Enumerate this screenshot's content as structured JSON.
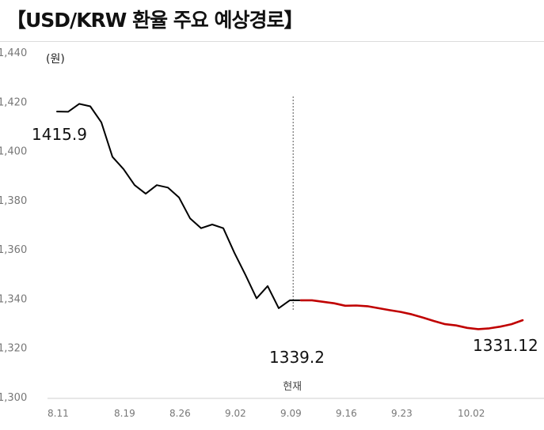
{
  "title": "【USD/KRW 환율 주요 예상경로】",
  "chart_data": {
    "type": "line",
    "unit_label": "(원)",
    "ylim": [
      1300,
      1440
    ],
    "yticks": [
      "1,300",
      "1,320",
      "1,340",
      "1,360",
      "1,380",
      "1,400",
      "1,420",
      "1,440"
    ],
    "ytick_values": [
      1300,
      1320,
      1340,
      1360,
      1380,
      1400,
      1420,
      1440
    ],
    "x_tick_labels": [
      "8.11",
      "8.19",
      "8.26",
      "9.02",
      "9.09",
      "9.16",
      "9.23",
      "10.02"
    ],
    "x_tick_index": [
      0,
      6,
      11,
      16,
      21,
      26,
      31,
      37
    ],
    "xlim_index": [
      0,
      42
    ],
    "current_label": "현재",
    "current_index": 21.3,
    "grid": false,
    "series": [
      {
        "color": "#000000",
        "x_index": [
          0,
          1,
          2,
          3,
          4,
          5,
          6,
          7,
          8,
          9,
          10,
          11,
          12,
          13,
          14,
          15,
          16,
          17,
          18,
          19,
          20,
          21,
          22
        ],
        "values": [
          1415.9,
          1415.8,
          1419,
          1418,
          1411.5,
          1397.5,
          1392.5,
          1386,
          1382.5,
          1386,
          1385,
          1381,
          1372.5,
          1368.5,
          1370,
          1368.5,
          1358.5,
          1349.5,
          1340,
          1345,
          1336,
          1339.2,
          1339.2
        ]
      },
      {
        "color": "#c00000",
        "x_index": [
          22,
          23,
          24,
          25,
          26,
          27,
          28,
          29,
          30,
          31,
          32,
          33,
          34,
          35,
          36,
          37,
          38,
          39,
          40,
          41,
          42
        ],
        "values": [
          1339.2,
          1339.2,
          1338.6,
          1338,
          1337,
          1337.1,
          1336.8,
          1336,
          1335.2,
          1334.5,
          1333.5,
          1332.2,
          1330.8,
          1329.5,
          1329,
          1328,
          1327.5,
          1327.8,
          1328.5,
          1329.5,
          1331.12
        ]
      }
    ],
    "data_labels": [
      {
        "text": "1415.9",
        "x_index": 0,
        "value": 1415.9
      },
      {
        "text": "1339.2",
        "x_index": 21.3,
        "value": 1339.2
      },
      {
        "text": "1331.12",
        "x_index": 42,
        "value": 1331.12
      }
    ]
  }
}
